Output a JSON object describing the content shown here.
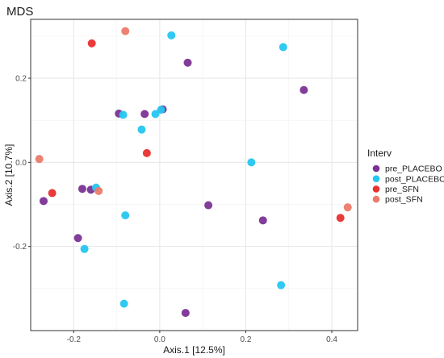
{
  "chart_data": {
    "type": "scatter",
    "title": "MDS",
    "xlabel": "Axis.1   [12.5%]",
    "ylabel": "Axis.2   [10.7%]",
    "xlim": [
      -0.3,
      0.46
    ],
    "ylim": [
      -0.4,
      0.34
    ],
    "x_ticks": [
      -0.2,
      0.0,
      0.2,
      0.4
    ],
    "x_tick_labels": [
      "-0.2",
      "0.0",
      "0.2",
      "0.4"
    ],
    "y_ticks": [
      -0.2,
      0.0,
      0.2
    ],
    "y_tick_labels": [
      "-0.2",
      "0.0",
      "0.2"
    ],
    "grid": true,
    "legend": {
      "title": "Interv",
      "position": "right"
    },
    "series": [
      {
        "name": "pre_PLACEBO",
        "color": "#7b3294",
        "points": [
          {
            "x": 0.065,
            "y": 0.237
          },
          {
            "x": 0.335,
            "y": 0.172
          },
          {
            "x": -0.095,
            "y": 0.116
          },
          {
            "x": -0.035,
            "y": 0.115
          },
          {
            "x": 0.007,
            "y": 0.126
          },
          {
            "x": -0.27,
            "y": -0.092
          },
          {
            "x": -0.18,
            "y": -0.063
          },
          {
            "x": -0.16,
            "y": -0.065
          },
          {
            "x": 0.113,
            "y": -0.102
          },
          {
            "x": 0.24,
            "y": -0.138
          },
          {
            "x": -0.19,
            "y": -0.18
          },
          {
            "x": 0.06,
            "y": -0.358
          }
        ]
      },
      {
        "name": "post_PLACEBO",
        "color": "#26c6f0",
        "points": [
          {
            "x": 0.027,
            "y": 0.302
          },
          {
            "x": 0.287,
            "y": 0.274
          },
          {
            "x": -0.085,
            "y": 0.113
          },
          {
            "x": -0.01,
            "y": 0.115
          },
          {
            "x": 0.003,
            "y": 0.125
          },
          {
            "x": -0.042,
            "y": 0.078
          },
          {
            "x": 0.213,
            "y": 0.0
          },
          {
            "x": -0.148,
            "y": -0.06
          },
          {
            "x": -0.08,
            "y": -0.126
          },
          {
            "x": -0.175,
            "y": -0.206
          },
          {
            "x": 0.282,
            "y": -0.292
          },
          {
            "x": -0.083,
            "y": -0.336
          }
        ]
      },
      {
        "name": "pre_SFN",
        "color": "#e8312f",
        "points": [
          {
            "x": -0.158,
            "y": 0.283
          },
          {
            "x": -0.03,
            "y": 0.022
          },
          {
            "x": -0.25,
            "y": -0.073
          },
          {
            "x": 0.42,
            "y": -0.132
          }
        ]
      },
      {
        "name": "post_SFN",
        "color": "#ea7b6a",
        "points": [
          {
            "x": -0.08,
            "y": 0.312
          },
          {
            "x": -0.28,
            "y": 0.008
          },
          {
            "x": -0.142,
            "y": -0.068
          },
          {
            "x": 0.437,
            "y": -0.107
          }
        ]
      }
    ]
  }
}
